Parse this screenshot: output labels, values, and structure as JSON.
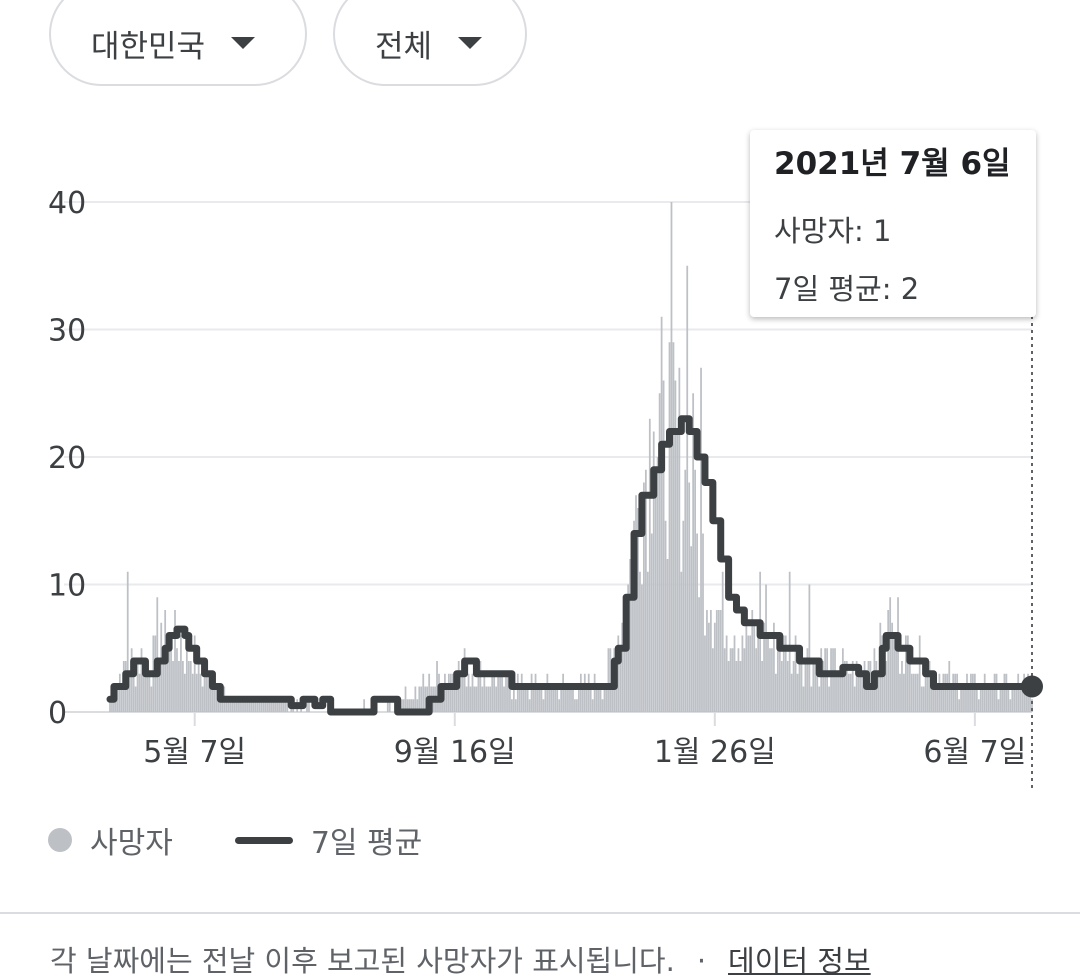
{
  "filters": {
    "country": "대한민국",
    "scope": "전체"
  },
  "tooltip": {
    "date": "2021년 7월 6일",
    "deaths_label": "사망자: 1",
    "avg_label": "7일 평균: 2"
  },
  "legend": {
    "deaths": "사망자",
    "average": "7일 평균"
  },
  "footer": {
    "note": "각 날짜에는 전날 이후 보고된 사망자가 표시됩니다.",
    "separator": "·",
    "link": "데이터 정보"
  },
  "colors": {
    "bars": "#bdc1c6",
    "average_line": "#3c4043",
    "grid": "#e8eaed"
  },
  "chart_data": {
    "type": "bar",
    "title": "",
    "xlabel": "",
    "ylabel": "",
    "ylim": [
      0,
      40
    ],
    "yticks": [
      "0",
      "10",
      "20",
      "30",
      "40"
    ],
    "xticks": [
      {
        "label": "5월 7일",
        "day": 43
      },
      {
        "label": "9월 16일",
        "day": 175
      },
      {
        "label": "1월 26일",
        "day": 307
      },
      {
        "label": "6월 7일",
        "day": 439
      }
    ],
    "grid": true,
    "legend_position": "bottom-left",
    "selected_index": 468,
    "daily_profile": [
      [
        0,
        1
      ],
      [
        6,
        3
      ],
      [
        14,
        4
      ],
      [
        20,
        4
      ],
      [
        28,
        5
      ],
      [
        32,
        6
      ],
      [
        38,
        5
      ],
      [
        44,
        4
      ],
      [
        48,
        3
      ],
      [
        54,
        2
      ],
      [
        60,
        1
      ],
      [
        80,
        1
      ],
      [
        90,
        1
      ],
      [
        100,
        0.5
      ],
      [
        110,
        0.5
      ],
      [
        120,
        0.3
      ],
      [
        130,
        0.5
      ],
      [
        140,
        0.8
      ],
      [
        150,
        1.2
      ],
      [
        160,
        2
      ],
      [
        170,
        3
      ],
      [
        178,
        3.5
      ],
      [
        186,
        3
      ],
      [
        196,
        2.5
      ],
      [
        210,
        2
      ],
      [
        230,
        2
      ],
      [
        250,
        2
      ],
      [
        255,
        4
      ],
      [
        262,
        9
      ],
      [
        268,
        16
      ],
      [
        274,
        21
      ],
      [
        280,
        22
      ],
      [
        286,
        22
      ],
      [
        292,
        17
      ],
      [
        300,
        12
      ],
      [
        306,
        9
      ],
      [
        314,
        7
      ],
      [
        322,
        6
      ],
      [
        330,
        5.5
      ],
      [
        340,
        5
      ],
      [
        350,
        4.5
      ],
      [
        360,
        4
      ],
      [
        370,
        3.5
      ],
      [
        380,
        3
      ],
      [
        390,
        5
      ],
      [
        396,
        6
      ],
      [
        404,
        5
      ],
      [
        412,
        4
      ],
      [
        420,
        3
      ],
      [
        430,
        2.5
      ],
      [
        440,
        2
      ],
      [
        468,
        2
      ]
    ],
    "daily_spikes": [
      {
        "day": 9,
        "value": 11
      },
      {
        "day": 24,
        "value": 9
      },
      {
        "day": 28,
        "value": 8
      },
      {
        "day": 86,
        "value": 1
      },
      {
        "day": 285,
        "value": 40
      },
      {
        "day": 293,
        "value": 35
      },
      {
        "day": 281,
        "value": 26
      },
      {
        "day": 296,
        "value": 25
      },
      {
        "day": 276,
        "value": 22
      },
      {
        "day": 300,
        "value": 27
      },
      {
        "day": 330,
        "value": 11
      },
      {
        "day": 333,
        "value": 10
      },
      {
        "day": 345,
        "value": 11
      },
      {
        "day": 355,
        "value": 10
      },
      {
        "day": 396,
        "value": 9
      },
      {
        "day": 400,
        "value": 9
      }
    ],
    "average_steps": [
      [
        0,
        1
      ],
      [
        2,
        2
      ],
      [
        8,
        3
      ],
      [
        12,
        4
      ],
      [
        18,
        3
      ],
      [
        24,
        4
      ],
      [
        28,
        5
      ],
      [
        30,
        6
      ],
      [
        34,
        6.5
      ],
      [
        38,
        6
      ],
      [
        40,
        5
      ],
      [
        44,
        4
      ],
      [
        48,
        3
      ],
      [
        52,
        2
      ],
      [
        56,
        1
      ],
      [
        90,
        1
      ],
      [
        92,
        0.5
      ],
      [
        98,
        1
      ],
      [
        104,
        0.5
      ],
      [
        108,
        1
      ],
      [
        112,
        0
      ],
      [
        130,
        0
      ],
      [
        134,
        1
      ],
      [
        146,
        0
      ],
      [
        160,
        0
      ],
      [
        162,
        1
      ],
      [
        168,
        2
      ],
      [
        176,
        3
      ],
      [
        180,
        4
      ],
      [
        186,
        3
      ],
      [
        204,
        2
      ],
      [
        252,
        2
      ],
      [
        256,
        4
      ],
      [
        258,
        5
      ],
      [
        262,
        9
      ],
      [
        266,
        14
      ],
      [
        270,
        17
      ],
      [
        276,
        19
      ],
      [
        280,
        21
      ],
      [
        284,
        22
      ],
      [
        290,
        23
      ],
      [
        294,
        22
      ],
      [
        298,
        20
      ],
      [
        302,
        18
      ],
      [
        306,
        15
      ],
      [
        310,
        12
      ],
      [
        314,
        9
      ],
      [
        318,
        8
      ],
      [
        322,
        7
      ],
      [
        330,
        6
      ],
      [
        340,
        5
      ],
      [
        350,
        4
      ],
      [
        360,
        3
      ],
      [
        372,
        3.5
      ],
      [
        380,
        3
      ],
      [
        384,
        2
      ],
      [
        388,
        3
      ],
      [
        392,
        5
      ],
      [
        394,
        6
      ],
      [
        400,
        5
      ],
      [
        406,
        4
      ],
      [
        410,
        4
      ],
      [
        414,
        3
      ],
      [
        418,
        2
      ],
      [
        468,
        2
      ]
    ],
    "series": [
      {
        "name": "사망자",
        "kind": "daily"
      },
      {
        "name": "7일 평균",
        "kind": "line"
      }
    ]
  }
}
